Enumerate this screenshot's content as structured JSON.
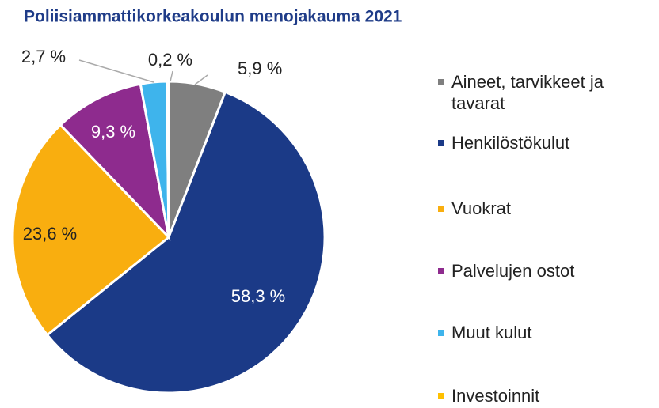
{
  "chart_data": {
    "type": "pie",
    "title": "Poliisiammattikorkeakoulun menojakauma 2021",
    "categories": [
      "Aineet, tarvikkeet ja tavarat",
      "Henkilöstökulut",
      "Vuokrat",
      "Palvelujen ostot",
      "Muut kulut",
      "Investoinnit"
    ],
    "values": [
      5.9,
      58.3,
      23.6,
      9.3,
      2.7,
      0.2
    ],
    "value_labels": [
      "5,9 %",
      "58,3 %",
      "23,6 %",
      "9,3 %",
      "2,7 %",
      "0,2 %"
    ],
    "colors": [
      "#7f7f7f",
      "#1b3a87",
      "#f9ae0f",
      "#8e2b8e",
      "#3eb4ec",
      "#ffc000"
    ]
  }
}
